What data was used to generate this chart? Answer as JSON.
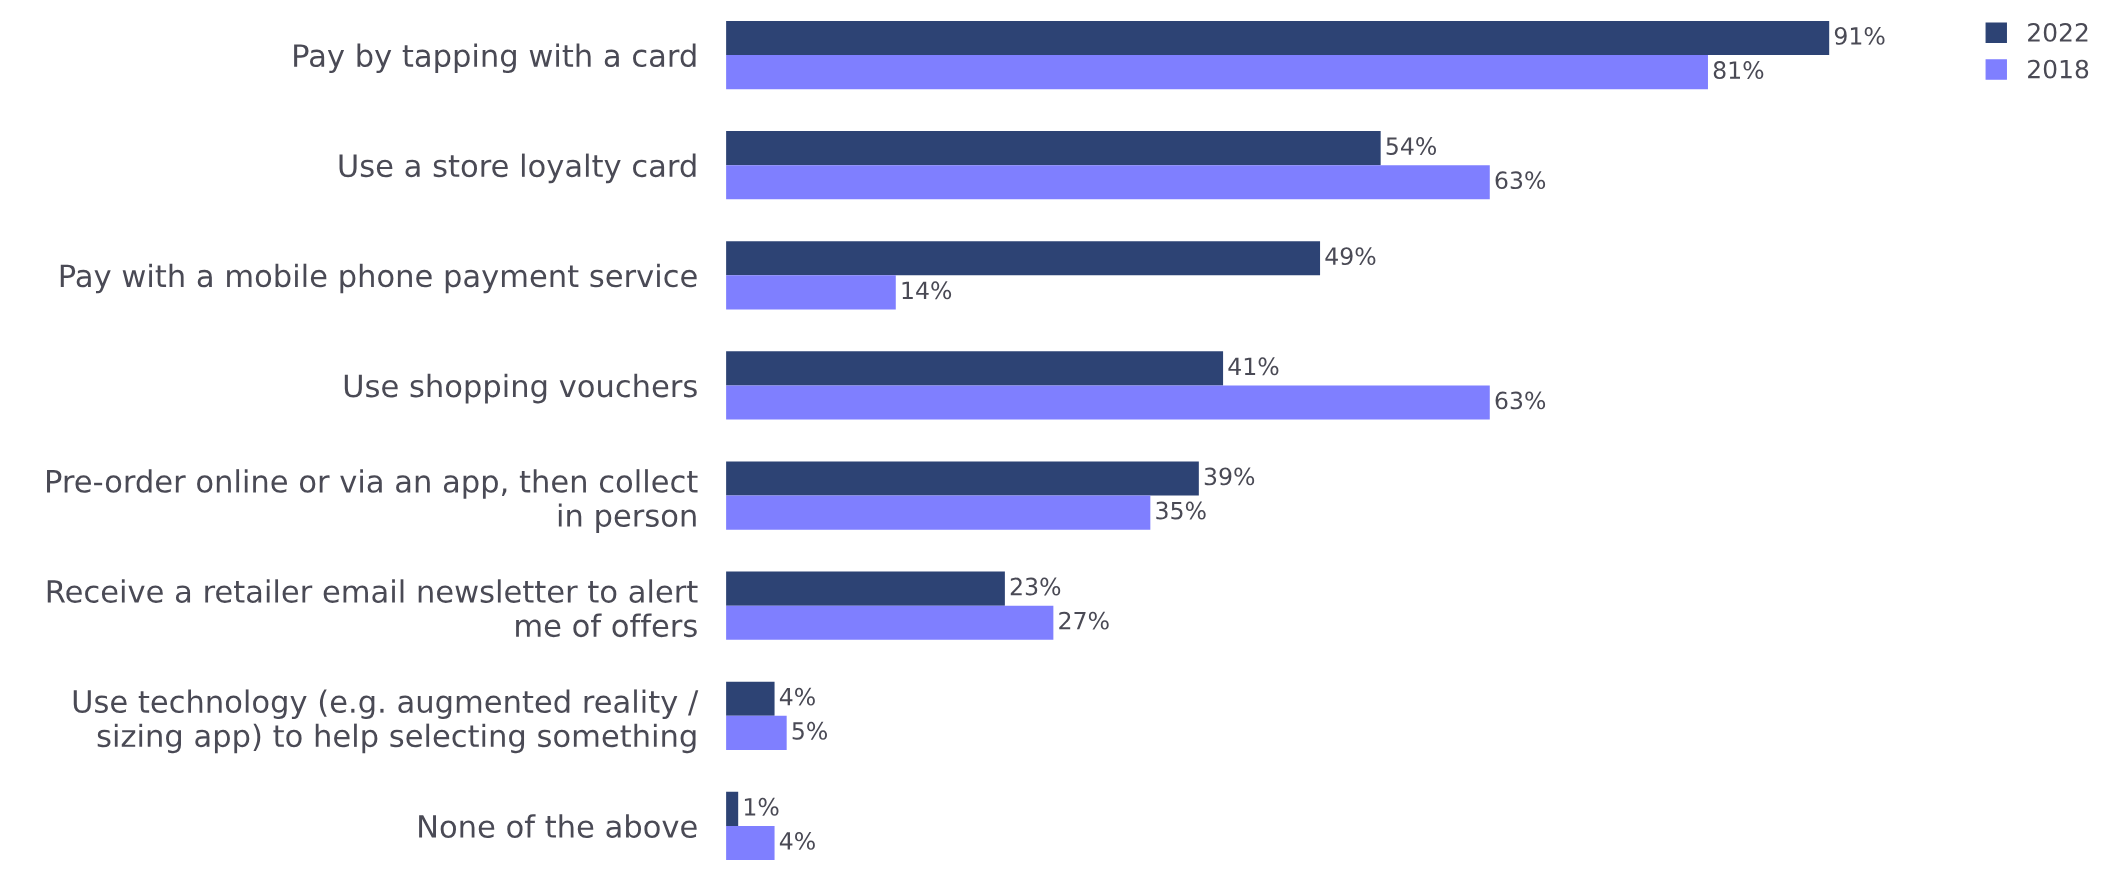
{
  "chart_data": {
    "type": "bar",
    "orientation": "horizontal",
    "categories": [
      "Pay by tapping with a card",
      "Use a store loyalty card",
      "Pay with a mobile phone payment service",
      "Use shopping vouchers",
      "Pre-order online or via an app, then collect\nin person",
      "Receive a retailer email newsletter to alert\nme of offers",
      "Use technology (e.g. augmented reality /\nsizing app) to help selecting something",
      "None of the above"
    ],
    "series": [
      {
        "name": "2022",
        "color": "#2d4374",
        "values": [
          91,
          54,
          49,
          41,
          39,
          23,
          4,
          1
        ],
        "value_labels": [
          "91%",
          "54%",
          "49%",
          "41%",
          "39%",
          "23%",
          "4%",
          "1%"
        ]
      },
      {
        "name": "2018",
        "color": "#7f7fff",
        "values": [
          81,
          63,
          14,
          63,
          35,
          27,
          5,
          4
        ],
        "value_labels": [
          "81%",
          "63%",
          "14%",
          "63%",
          "35%",
          "27%",
          "5%",
          "4%"
        ]
      }
    ],
    "legend": "top right",
    "grid": false
  }
}
